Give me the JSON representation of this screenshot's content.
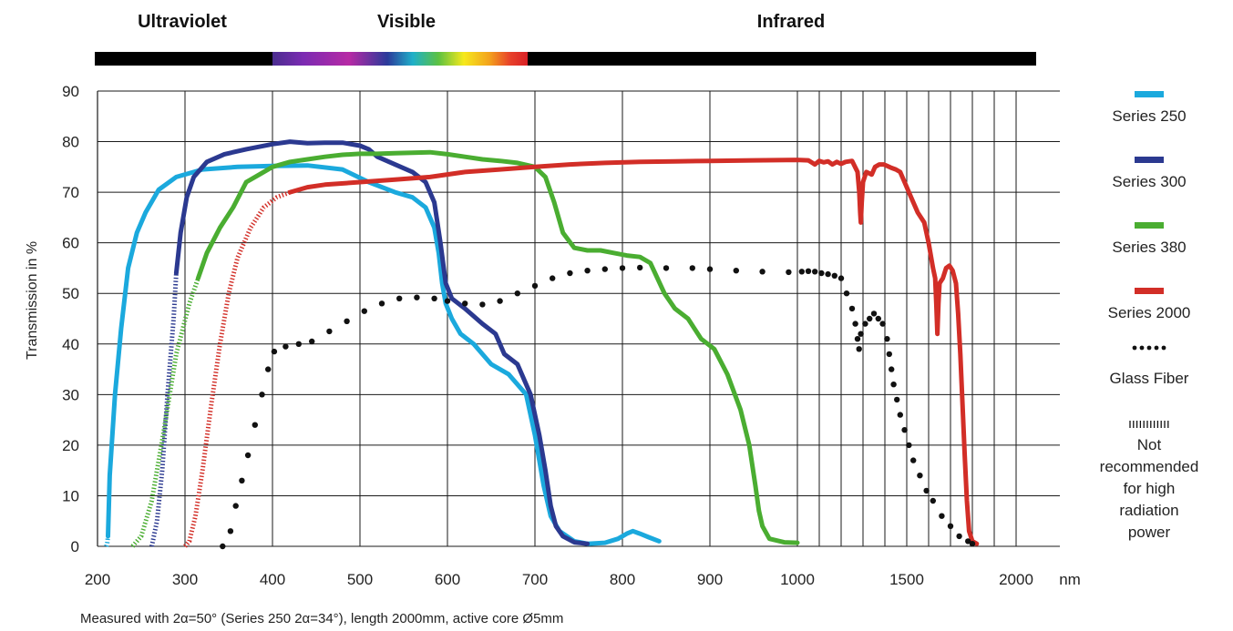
{
  "chart_data": {
    "type": "line",
    "title": "",
    "ylabel": "Transmission in %",
    "x_unit": "nm",
    "ylim": [
      0,
      90
    ],
    "grid": true,
    "legend_position": "right",
    "footnote": "Measured with 2α=50° (Series 250 2α=34°), length 2000mm, active core Ø5mm",
    "spectrum_bands": [
      {
        "name": "Ultraviolet",
        "range": [
          200,
          400
        ]
      },
      {
        "name": "Visible",
        "range": [
          400,
          700
        ]
      },
      {
        "name": "Infrared",
        "range": [
          700,
          2200
        ]
      }
    ],
    "x_ticks": [
      {
        "value": 200,
        "label": "200"
      },
      {
        "value": 300,
        "label": "300"
      },
      {
        "value": 400,
        "label": "400"
      },
      {
        "value": 500,
        "label": "500"
      },
      {
        "value": 600,
        "label": "600"
      },
      {
        "value": 700,
        "label": "700"
      },
      {
        "value": 800,
        "label": "800"
      },
      {
        "value": 900,
        "label": "900"
      },
      {
        "value": 1000,
        "label": "1000"
      },
      {
        "value": 1500,
        "label": "1500"
      },
      {
        "value": 2000,
        "label": "2000"
      }
    ],
    "x_minor_gridlines": [
      1100,
      1200,
      1300,
      1400,
      1600,
      1700,
      1800,
      1900
    ],
    "y_ticks": [
      0,
      10,
      20,
      30,
      40,
      50,
      60,
      70,
      80,
      90
    ],
    "series": [
      {
        "name": "Series 250",
        "color": "#1ba9dd",
        "style": "solid",
        "not_recommended": [
          [
            210,
            0
          ],
          [
            211,
            0.5
          ],
          [
            212,
            2
          ]
        ],
        "points": [
          [
            212,
            2
          ],
          [
            214,
            14
          ],
          [
            220,
            30
          ],
          [
            227,
            43
          ],
          [
            235,
            55
          ],
          [
            245,
            62
          ],
          [
            255,
            66
          ],
          [
            270,
            70.5
          ],
          [
            290,
            73
          ],
          [
            320,
            74.5
          ],
          [
            360,
            75
          ],
          [
            400,
            75.2
          ],
          [
            440,
            75.3
          ],
          [
            480,
            74.5
          ],
          [
            510,
            72
          ],
          [
            540,
            70
          ],
          [
            560,
            69
          ],
          [
            575,
            67
          ],
          [
            585,
            63
          ],
          [
            590,
            58
          ],
          [
            594,
            52
          ],
          [
            598,
            48
          ],
          [
            605,
            45
          ],
          [
            615,
            42
          ],
          [
            630,
            40
          ],
          [
            650,
            36
          ],
          [
            670,
            34
          ],
          [
            690,
            30
          ],
          [
            700,
            22
          ],
          [
            710,
            12
          ],
          [
            718,
            6
          ],
          [
            728,
            3
          ],
          [
            745,
            1
          ],
          [
            760,
            0.5
          ],
          [
            780,
            0.7
          ],
          [
            795,
            1.5
          ],
          [
            805,
            2.5
          ],
          [
            812,
            3
          ],
          [
            820,
            2.5
          ],
          [
            830,
            1.8
          ],
          [
            842,
            1
          ]
        ]
      },
      {
        "name": "Series 300",
        "color": "#2b3990",
        "style": "solid",
        "not_recommended": [
          [
            262,
            0
          ],
          [
            268,
            5
          ],
          [
            274,
            15
          ],
          [
            280,
            30
          ],
          [
            287,
            45
          ],
          [
            290,
            54
          ]
        ],
        "points": [
          [
            290,
            54
          ],
          [
            295,
            62
          ],
          [
            302,
            69
          ],
          [
            310,
            73
          ],
          [
            325,
            76
          ],
          [
            345,
            77.5
          ],
          [
            370,
            78.5
          ],
          [
            400,
            79.5
          ],
          [
            420,
            80
          ],
          [
            440,
            79.7
          ],
          [
            460,
            79.8
          ],
          [
            480,
            79.8
          ],
          [
            500,
            79.2
          ],
          [
            510,
            78.5
          ],
          [
            520,
            77
          ],
          [
            540,
            75.5
          ],
          [
            560,
            74
          ],
          [
            575,
            72
          ],
          [
            585,
            68
          ],
          [
            592,
            60
          ],
          [
            598,
            52
          ],
          [
            605,
            49
          ],
          [
            620,
            47
          ],
          [
            640,
            44
          ],
          [
            655,
            42
          ],
          [
            665,
            38
          ],
          [
            680,
            36
          ],
          [
            695,
            30
          ],
          [
            705,
            22
          ],
          [
            712,
            15
          ],
          [
            718,
            8
          ],
          [
            724,
            4
          ],
          [
            732,
            2
          ],
          [
            745,
            0.8
          ],
          [
            760,
            0.5
          ]
        ]
      },
      {
        "name": "Series 380",
        "color": "#4aad31",
        "style": "solid",
        "not_recommended": [
          [
            240,
            0
          ],
          [
            250,
            2
          ],
          [
            262,
            9
          ],
          [
            275,
            22
          ],
          [
            290,
            38
          ],
          [
            305,
            48
          ],
          [
            315,
            53
          ]
        ],
        "points": [
          [
            315,
            53
          ],
          [
            325,
            58
          ],
          [
            340,
            63
          ],
          [
            355,
            67
          ],
          [
            370,
            72
          ],
          [
            385,
            73.5
          ],
          [
            400,
            75
          ],
          [
            420,
            76
          ],
          [
            440,
            76.5
          ],
          [
            460,
            77
          ],
          [
            480,
            77.4
          ],
          [
            500,
            77.6
          ],
          [
            520,
            77.6
          ],
          [
            540,
            77.7
          ],
          [
            560,
            77.8
          ],
          [
            580,
            77.9
          ],
          [
            600,
            77.5
          ],
          [
            620,
            77
          ],
          [
            640,
            76.5
          ],
          [
            660,
            76.2
          ],
          [
            680,
            75.8
          ],
          [
            700,
            75
          ],
          [
            712,
            73
          ],
          [
            722,
            68
          ],
          [
            732,
            62
          ],
          [
            745,
            59
          ],
          [
            760,
            58.5
          ],
          [
            775,
            58.5
          ],
          [
            790,
            58
          ],
          [
            805,
            57.5
          ],
          [
            820,
            57.2
          ],
          [
            832,
            56
          ],
          [
            840,
            53
          ],
          [
            848,
            50
          ],
          [
            860,
            47
          ],
          [
            875,
            45
          ],
          [
            890,
            41
          ],
          [
            905,
            39
          ],
          [
            920,
            34
          ],
          [
            935,
            27
          ],
          [
            945,
            20
          ],
          [
            952,
            12
          ],
          [
            956,
            7
          ],
          [
            960,
            4
          ],
          [
            968,
            1.5
          ],
          [
            985,
            0.8
          ],
          [
            1000,
            0.7
          ]
        ]
      },
      {
        "name": "Series 2000",
        "color": "#d22e27",
        "style": "solid",
        "not_recommended": [
          [
            300,
            0
          ],
          [
            305,
            1
          ],
          [
            312,
            6
          ],
          [
            320,
            15
          ],
          [
            330,
            28
          ],
          [
            340,
            40
          ],
          [
            350,
            50
          ],
          [
            360,
            57
          ],
          [
            375,
            63
          ],
          [
            390,
            67
          ],
          [
            405,
            69
          ],
          [
            420,
            70
          ]
        ],
        "points": [
          [
            420,
            70
          ],
          [
            440,
            71
          ],
          [
            460,
            71.5
          ],
          [
            500,
            72
          ],
          [
            540,
            72.5
          ],
          [
            580,
            73
          ],
          [
            620,
            74
          ],
          [
            660,
            74.5
          ],
          [
            700,
            75
          ],
          [
            740,
            75.5
          ],
          [
            780,
            75.8
          ],
          [
            820,
            76
          ],
          [
            860,
            76.1
          ],
          [
            900,
            76.2
          ],
          [
            950,
            76.3
          ],
          [
            1000,
            76.4
          ],
          [
            1050,
            76.3
          ],
          [
            1080,
            75.5
          ],
          [
            1100,
            76.2
          ],
          [
            1120,
            75.9
          ],
          [
            1140,
            76.1
          ],
          [
            1160,
            75.5
          ],
          [
            1180,
            76
          ],
          [
            1200,
            75.6
          ],
          [
            1220,
            76
          ],
          [
            1250,
            76.2
          ],
          [
            1275,
            74
          ],
          [
            1283,
            70
          ],
          [
            1287,
            66
          ],
          [
            1290,
            64
          ],
          [
            1294,
            68
          ],
          [
            1300,
            72
          ],
          [
            1315,
            74
          ],
          [
            1340,
            73.5
          ],
          [
            1355,
            75
          ],
          [
            1375,
            75.5
          ],
          [
            1395,
            75.5
          ],
          [
            1410,
            75.2
          ],
          [
            1430,
            74.8
          ],
          [
            1450,
            74.5
          ],
          [
            1470,
            74
          ],
          [
            1490,
            72
          ],
          [
            1520,
            69
          ],
          [
            1550,
            66
          ],
          [
            1580,
            64
          ],
          [
            1600,
            60
          ],
          [
            1620,
            55
          ],
          [
            1630,
            53
          ],
          [
            1635,
            48
          ],
          [
            1640,
            42
          ],
          [
            1645,
            48
          ],
          [
            1650,
            52
          ],
          [
            1665,
            53
          ],
          [
            1680,
            55
          ],
          [
            1695,
            55.5
          ],
          [
            1710,
            54.5
          ],
          [
            1725,
            52
          ],
          [
            1735,
            46
          ],
          [
            1745,
            38
          ],
          [
            1755,
            28
          ],
          [
            1765,
            18
          ],
          [
            1775,
            9
          ],
          [
            1785,
            3
          ],
          [
            1800,
            1
          ],
          [
            1820,
            0.5
          ]
        ]
      },
      {
        "name": "Glass Fiber",
        "color": "#111111",
        "style": "dotted",
        "points": [
          [
            343,
            0
          ],
          [
            352,
            3
          ],
          [
            358,
            8
          ],
          [
            365,
            13
          ],
          [
            372,
            18
          ],
          [
            380,
            24
          ],
          [
            388,
            30
          ],
          [
            395,
            35
          ],
          [
            402,
            38.5
          ],
          [
            415,
            39.5
          ],
          [
            430,
            40
          ],
          [
            445,
            40.5
          ],
          [
            465,
            42.5
          ],
          [
            485,
            44.5
          ],
          [
            505,
            46.5
          ],
          [
            525,
            48
          ],
          [
            545,
            49
          ],
          [
            565,
            49.2
          ],
          [
            585,
            49
          ],
          [
            600,
            48.5
          ],
          [
            620,
            48
          ],
          [
            640,
            47.8
          ],
          [
            660,
            48.5
          ],
          [
            680,
            50
          ],
          [
            700,
            51.5
          ],
          [
            720,
            53
          ],
          [
            740,
            54
          ],
          [
            760,
            54.5
          ],
          [
            780,
            54.8
          ],
          [
            800,
            55
          ],
          [
            820,
            55.1
          ],
          [
            850,
            55
          ],
          [
            880,
            55
          ],
          [
            900,
            54.8
          ],
          [
            930,
            54.5
          ],
          [
            960,
            54.3
          ],
          [
            990,
            54.2
          ],
          [
            1020,
            54.3
          ],
          [
            1050,
            54.4
          ],
          [
            1080,
            54.3
          ],
          [
            1110,
            54
          ],
          [
            1140,
            53.8
          ],
          [
            1170,
            53.5
          ],
          [
            1200,
            53
          ],
          [
            1225,
            50
          ],
          [
            1250,
            47
          ],
          [
            1265,
            44
          ],
          [
            1275,
            41
          ],
          [
            1282,
            39
          ],
          [
            1290,
            42
          ],
          [
            1310,
            44
          ],
          [
            1330,
            45
          ],
          [
            1350,
            46
          ],
          [
            1370,
            45
          ],
          [
            1390,
            44
          ],
          [
            1410,
            41
          ],
          [
            1420,
            38
          ],
          [
            1430,
            35
          ],
          [
            1440,
            32
          ],
          [
            1455,
            29
          ],
          [
            1470,
            26
          ],
          [
            1490,
            23
          ],
          [
            1510,
            20
          ],
          [
            1530,
            17
          ],
          [
            1560,
            14
          ],
          [
            1590,
            11
          ],
          [
            1620,
            9
          ],
          [
            1660,
            6
          ],
          [
            1700,
            4
          ],
          [
            1740,
            2
          ],
          [
            1780,
            1
          ],
          [
            1800,
            0.5
          ]
        ]
      }
    ],
    "not_recommended_label": "Not\nrecommended\nfor high\nradiation\npower"
  }
}
